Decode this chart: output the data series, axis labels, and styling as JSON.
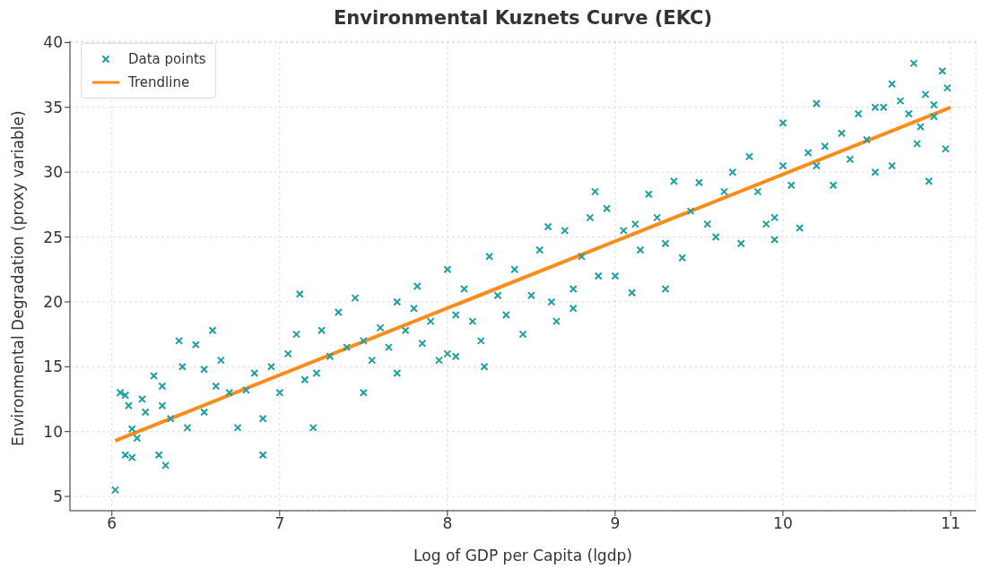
{
  "chart_data": {
    "type": "scatter",
    "title": "Environmental Kuznets Curve (EKC)",
    "xlabel": "Log of GDP per Capita (lgdp)",
    "ylabel": "Environmental Degradation (proxy variable)",
    "xlim": [
      5.75,
      11.15
    ],
    "ylim": [
      3.9,
      40.1
    ],
    "xticks": [
      6,
      7,
      8,
      9,
      10,
      11
    ],
    "yticks": [
      5,
      10,
      15,
      20,
      25,
      30,
      35,
      40
    ],
    "grid": true,
    "legend": "top left",
    "marker": "cross",
    "series": [
      {
        "name": "Data points",
        "color": "#1f9e9e",
        "x": [
          6.02,
          6.05,
          6.08,
          6.1,
          6.12,
          6.08,
          6.12,
          6.15,
          6.18,
          6.2,
          6.25,
          6.3,
          6.28,
          6.32,
          6.35,
          6.4,
          6.42,
          6.45,
          6.5,
          6.55,
          6.6,
          6.62,
          6.65,
          6.7,
          6.75,
          6.8,
          6.85,
          6.9,
          6.9,
          6.95,
          7.0,
          7.05,
          7.1,
          7.12,
          7.15,
          7.2,
          7.22,
          7.25,
          7.3,
          7.35,
          7.4,
          7.45,
          7.5,
          7.5,
          7.55,
          7.6,
          7.65,
          7.7,
          7.75,
          7.8,
          7.82,
          7.85,
          7.9,
          7.95,
          8.0,
          8.0,
          8.05,
          8.1,
          8.15,
          8.2,
          8.22,
          8.25,
          8.3,
          8.35,
          8.4,
          8.45,
          8.5,
          8.55,
          8.6,
          8.62,
          8.65,
          8.7,
          8.75,
          8.8,
          8.85,
          8.88,
          8.9,
          8.95,
          9.0,
          9.05,
          9.1,
          9.12,
          9.15,
          9.2,
          9.25,
          9.3,
          9.35,
          9.4,
          9.45,
          9.5,
          9.55,
          9.6,
          9.65,
          9.7,
          9.75,
          9.8,
          9.85,
          9.9,
          9.95,
          10.0,
          10.0,
          10.05,
          10.1,
          10.15,
          10.2,
          10.25,
          10.3,
          10.35,
          10.4,
          10.45,
          10.5,
          10.55,
          10.6,
          10.65,
          10.7,
          10.75,
          10.78,
          10.8,
          10.85,
          10.87,
          10.9,
          10.95,
          10.97,
          10.98,
          10.55,
          10.65,
          10.82,
          10.9,
          8.05,
          7.7,
          9.95,
          10.2,
          8.75,
          9.3,
          6.3,
          6.55
        ],
        "values": [
          5.5,
          13,
          12.8,
          12,
          10.2,
          8.2,
          8,
          9.5,
          12.5,
          11.5,
          14.3,
          12,
          8.2,
          7.4,
          11,
          17,
          15,
          10.3,
          16.7,
          14.8,
          17.8,
          13.5,
          15.5,
          13,
          10.3,
          13.2,
          14.5,
          8.2,
          11,
          15,
          13,
          16,
          17.5,
          20.6,
          14,
          10.3,
          14.5,
          17.8,
          15.8,
          19.2,
          16.5,
          20.3,
          13,
          17,
          15.5,
          18,
          16.5,
          20,
          17.8,
          19.5,
          21.2,
          16.8,
          18.5,
          15.5,
          22.5,
          16,
          19,
          21,
          18.5,
          17,
          15,
          23.5,
          20.5,
          19,
          22.5,
          17.5,
          20.5,
          24,
          25.8,
          20,
          18.5,
          25.5,
          21,
          23.5,
          26.5,
          28.5,
          22,
          27.2,
          22,
          25.5,
          20.7,
          26,
          24,
          28.3,
          26.5,
          24.5,
          29.3,
          23.4,
          27,
          29.2,
          26,
          25,
          28.5,
          30,
          24.5,
          31.2,
          28.5,
          26,
          24.8,
          30.5,
          33.8,
          29,
          25.7,
          31.5,
          35.3,
          32,
          29,
          33,
          31,
          34.5,
          32.5,
          30,
          35,
          36.8,
          35.5,
          34.5,
          38.4,
          32.2,
          36,
          29.3,
          35.2,
          37.8,
          31.8,
          36.5,
          35,
          30.5,
          33.5,
          34.3,
          15.8,
          14.5,
          26.5,
          30.5,
          19.5,
          21,
          13.5,
          11.5
        ]
      },
      {
        "name": "Trendline",
        "type": "line",
        "color": "#ff8c1a",
        "marker": "none",
        "line_style": "solid",
        "x": [
          6.02,
          11
        ],
        "values": [
          9.3,
          35
        ]
      }
    ]
  }
}
